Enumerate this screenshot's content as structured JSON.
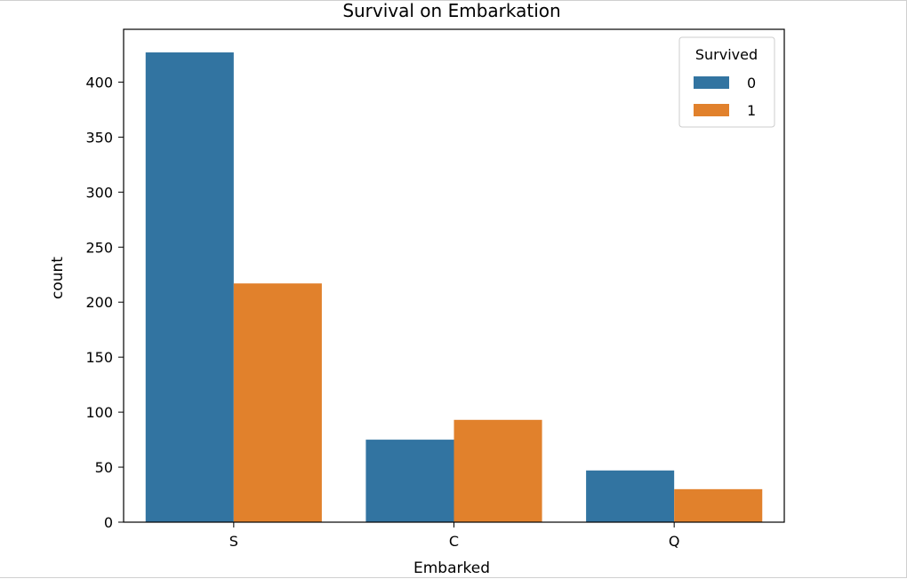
{
  "chart_data": {
    "type": "bar",
    "title": "Survival on Embarkation",
    "xlabel": "Embarked",
    "ylabel": "count",
    "categories": [
      "S",
      "C",
      "Q"
    ],
    "series": [
      {
        "name": "0",
        "values": [
          427,
          75,
          47
        ],
        "color": "#3274a1"
      },
      {
        "name": "1",
        "values": [
          217,
          93,
          30
        ],
        "color": "#e1812c"
      }
    ],
    "ylim": [
      0,
      448
    ],
    "yticks": [
      0,
      50,
      100,
      150,
      200,
      250,
      300,
      350,
      400
    ],
    "legend": {
      "title": "Survived",
      "placement": "top-right"
    },
    "grid": false
  }
}
